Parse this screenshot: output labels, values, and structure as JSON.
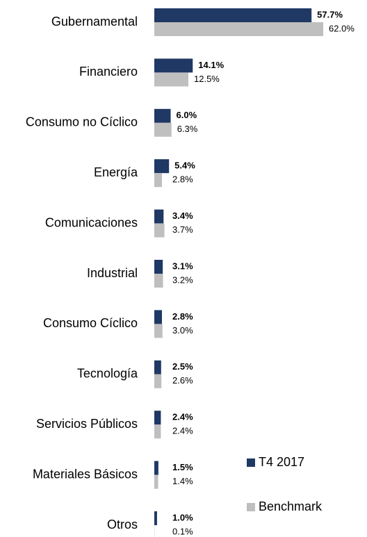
{
  "chart_data": {
    "type": "barh",
    "categories": [
      "Gubernamental",
      "Financiero",
      "Consumo no Cíclico",
      "Energía",
      "Comunicaciones",
      "Industrial",
      "Consumo Cíclico",
      "Tecnología",
      "Servicios Públicos",
      "Materiales Básicos",
      "Otros"
    ],
    "series": [
      {
        "name": "T4 2017",
        "color": "#1f3864",
        "values": [
          57.7,
          14.1,
          6.0,
          5.4,
          3.4,
          3.1,
          2.8,
          2.5,
          2.4,
          1.5,
          1.0
        ],
        "value_labels": [
          "57.7%",
          "14.1%",
          "6.0%",
          "5.4%",
          "3.4%",
          "3.1%",
          "2.8%",
          "2.5%",
          "2.4%",
          "1.5%",
          "1.0%"
        ]
      },
      {
        "name": "Benchmark",
        "color": "#bfbfbf",
        "values": [
          62.0,
          12.5,
          6.3,
          2.8,
          3.7,
          3.2,
          3.0,
          2.6,
          2.4,
          1.4,
          0.1
        ],
        "value_labels": [
          "62.0%",
          "12.5%",
          "6.3%",
          "2.8%",
          "3.7%",
          "3.2%",
          "3.0%",
          "2.6%",
          "2.4%",
          "1.4%",
          "0.1%"
        ]
      }
    ],
    "legend": "lower right"
  }
}
